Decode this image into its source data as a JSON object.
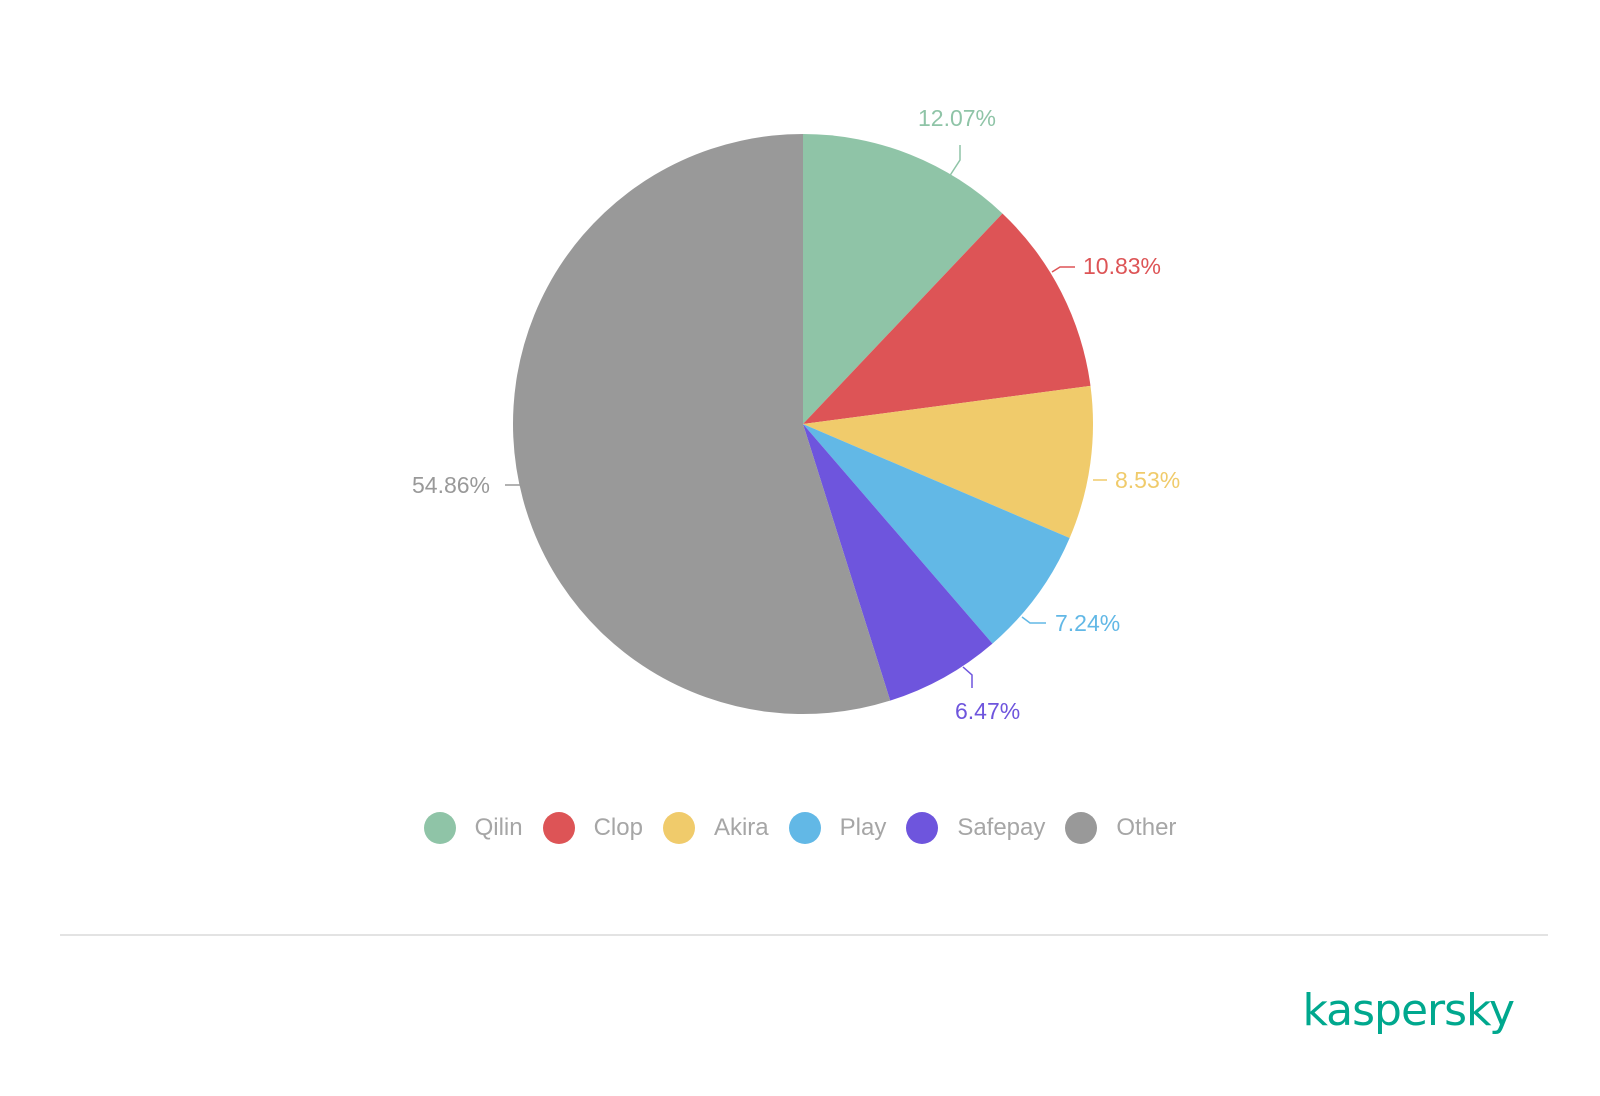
{
  "chart_data": {
    "type": "pie",
    "title": "",
    "slices": [
      {
        "name": "Qilin",
        "value": 12.07,
        "label": "12.07%",
        "color": "#8fc4a7"
      },
      {
        "name": "Clop",
        "value": 10.83,
        "label": "10.83%",
        "color": "#dd5456"
      },
      {
        "name": "Akira",
        "value": 8.53,
        "label": "8.53%",
        "color": "#f0cb6b"
      },
      {
        "name": "Play",
        "value": 7.24,
        "label": "7.24%",
        "color": "#62b8e6"
      },
      {
        "name": "Safepay",
        "value": 6.47,
        "label": "6.47%",
        "color": "#6e55dd"
      },
      {
        "name": "Other",
        "value": 54.86,
        "label": "54.86%",
        "color": "#999999"
      }
    ],
    "legend_position": "bottom",
    "label_color_other": "#999999"
  },
  "brand": {
    "logo_text": "kaspersky",
    "logo_color": "#00a88e"
  }
}
